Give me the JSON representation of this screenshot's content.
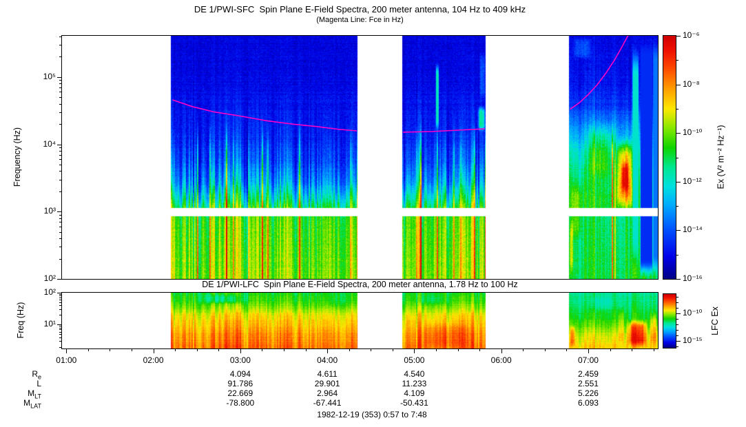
{
  "header": {
    "title": "DE 1/PWI-SFC  Spin Plane E-Field Spectra, 200 meter antenna, 104 Hz to 409 kHz",
    "subtitle": "(Magenta Line: Fce in Hz)"
  },
  "lfc_header": {
    "title": "DE 1/PWI-LFC  Spin Plane E-Field Spectra, 200 meter antenna, 1.78 Hz to 100 Hz"
  },
  "footer": {
    "date_range": "1982-12-19 (353) 0:57 to 7:48"
  },
  "ephemeris": {
    "column_hours": [
      3,
      4,
      5,
      7
    ],
    "rows": [
      {
        "label": "R",
        "sub": "e",
        "values": [
          "4.094",
          "4.611",
          "4.540",
          "2.459"
        ]
      },
      {
        "label": "L",
        "sub": "",
        "values": [
          "91.786",
          "29.901",
          "11.233",
          "2.551"
        ]
      },
      {
        "label": "M",
        "sub": "LT",
        "values": [
          "22.669",
          "2.964",
          "4.109",
          "5.226"
        ]
      },
      {
        "label": "M",
        "sub": "LAT",
        "values": [
          "-78.800",
          "-67.441",
          "-50.431",
          "6.093"
        ]
      }
    ]
  },
  "chart_data": {
    "type": "heatmap",
    "subtype": "spectrogram",
    "time_axis": {
      "start_hour": 0.95,
      "end_hour": 7.8,
      "minor_step_hours": 0.25,
      "tick_hours": [
        1,
        2,
        3,
        4,
        5,
        6,
        7
      ],
      "tick_labels": [
        "01:00",
        "02:00",
        "03:00",
        "04:00",
        "05:00",
        "06:00",
        "07:00"
      ]
    },
    "colormap": [
      [
        0.0,
        "#000086"
      ],
      [
        0.09,
        "#0000e8"
      ],
      [
        0.2,
        "#0050ff"
      ],
      [
        0.3,
        "#00a8ff"
      ],
      [
        0.38,
        "#00e0e0"
      ],
      [
        0.46,
        "#00e890"
      ],
      [
        0.54,
        "#10d400"
      ],
      [
        0.62,
        "#86e800"
      ],
      [
        0.7,
        "#ffe800"
      ],
      [
        0.78,
        "#ffa000"
      ],
      [
        0.86,
        "#ff5000"
      ],
      [
        0.94,
        "#f01000"
      ],
      [
        1.0,
        "#d00000"
      ]
    ],
    "fce_line": {
      "label": "Fce in Hz",
      "color": "#ff00c8",
      "segments_hour_logfreq": [
        [
          [
            2.22,
            4.66
          ],
          [
            2.45,
            4.56
          ],
          [
            2.7,
            4.48
          ],
          [
            3.0,
            4.42
          ],
          [
            3.3,
            4.35
          ],
          [
            3.6,
            4.3
          ],
          [
            3.9,
            4.26
          ],
          [
            4.15,
            4.22
          ],
          [
            4.34,
            4.2
          ]
        ],
        [
          [
            4.87,
            4.18
          ],
          [
            5.2,
            4.19
          ],
          [
            5.5,
            4.21
          ],
          [
            5.81,
            4.23
          ]
        ],
        [
          [
            6.79,
            4.52
          ],
          [
            6.9,
            4.62
          ],
          [
            7.0,
            4.74
          ],
          [
            7.1,
            4.88
          ],
          [
            7.2,
            5.05
          ],
          [
            7.3,
            5.25
          ],
          [
            7.38,
            5.43
          ],
          [
            7.45,
            5.6
          ],
          [
            7.49,
            5.66
          ]
        ]
      ]
    },
    "panels": {
      "sfc": {
        "ylabel": "Frequency (Hz)",
        "ylog_range": [
          2.0,
          5.612
        ],
        "yticks": [
          {
            "label": "10⁵",
            "log": 5
          },
          {
            "label": "10⁴",
            "log": 4
          },
          {
            "label": "10³",
            "log": 3
          },
          {
            "label": "10²",
            "log": 2
          }
        ],
        "colorbar": {
          "label": "Ex (V² m⁻² Hz⁻¹)",
          "log_range": [
            -6,
            -16
          ],
          "major_ticks": [
            {
              "label": "10⁻⁶",
              "log": -6
            },
            {
              "label": "10⁻⁸",
              "log": -8
            },
            {
              "label": "10⁻¹⁰",
              "log": -10
            },
            {
              "label": "10⁻¹²",
              "log": -12
            },
            {
              "label": "10⁻¹⁴",
              "log": -14
            },
            {
              "label": "10⁻¹⁶",
              "log": -16
            }
          ],
          "minor_logs": [
            -7,
            -9,
            -11,
            -13,
            -15
          ]
        },
        "gap_yfrac": [
          0.708,
          0.74
        ],
        "noise": 0.08,
        "spikes": true,
        "segments": [
          {
            "t": [
              2.2,
              4.35
            ],
            "profile": [
              [
                0,
                0.085
              ],
              [
                0.17,
                0.09
              ],
              [
                0.3,
                0.115
              ],
              [
                0.42,
                0.135
              ],
              [
                0.52,
                0.18
              ],
              [
                0.6,
                0.26
              ],
              [
                0.67,
                0.4
              ],
              [
                0.705,
                0.5
              ],
              [
                0.74,
                0.55
              ],
              [
                0.88,
                0.58
              ],
              [
                1,
                0.6
              ]
            ],
            "streak_env": [
              [
                0,
                0.015
              ],
              [
                0.22,
                0.03
              ],
              [
                0.38,
                0.09
              ],
              [
                0.5,
                0.18
              ],
              [
                0.62,
                0.3
              ],
              [
                0.7,
                0.3
              ],
              [
                0.74,
                0.2
              ],
              [
                1,
                0.17
              ]
            ],
            "features": []
          },
          {
            "t": [
              4.86,
              5.82
            ],
            "profile": [
              [
                0,
                0.085
              ],
              [
                0.17,
                0.09
              ],
              [
                0.3,
                0.115
              ],
              [
                0.42,
                0.135
              ],
              [
                0.52,
                0.18
              ],
              [
                0.6,
                0.26
              ],
              [
                0.67,
                0.4
              ],
              [
                0.705,
                0.5
              ],
              [
                0.74,
                0.55
              ],
              [
                0.88,
                0.58
              ],
              [
                1,
                0.6
              ]
            ],
            "streak_env": [
              [
                0,
                0.015
              ],
              [
                0.22,
                0.03
              ],
              [
                0.38,
                0.09
              ],
              [
                0.5,
                0.18
              ],
              [
                0.62,
                0.3
              ],
              [
                0.7,
                0.3
              ],
              [
                0.74,
                0.2
              ],
              [
                1,
                0.17
              ]
            ],
            "features": [
              {
                "t": [
                  5.24,
                  5.28
                ],
                "y": [
                  0.1,
                  0.4
                ],
                "set": 0.42,
                "soft": 0.2
              },
              {
                "t": [
                  5.72,
                  5.82
                ],
                "y": [
                  0.28,
                  0.4
                ],
                "add": 0.3,
                "soft": 0.3
              },
              {
                "t": [
                  5.74,
                  5.82
                ],
                "y": [
                  0.05,
                  0.28
                ],
                "add": 0.1,
                "soft": 0.3
              }
            ]
          },
          {
            "t": [
              6.78,
              7.8
            ],
            "profile": [
              [
                0,
                0.09
              ],
              [
                0.18,
                0.11
              ],
              [
                0.28,
                0.15
              ],
              [
                0.38,
                0.28
              ],
              [
                0.48,
                0.4
              ],
              [
                0.6,
                0.48
              ],
              [
                0.705,
                0.52
              ],
              [
                0.74,
                0.47
              ],
              [
                1,
                0.5
              ]
            ],
            "streak_env": [
              [
                0,
                0.03
              ],
              [
                0.3,
                0.08
              ],
              [
                0.5,
                0.13
              ],
              [
                1,
                0.11
              ]
            ],
            "features": [
              {
                "t": [
                  6.8,
                  7.05
                ],
                "y": [
                  0.0,
                  0.1
                ],
                "add": 0.1,
                "soft": 0.3
              },
              {
                "t": [
                  6.95,
                  7.32
                ],
                "y": [
                  0.33,
                  0.62
                ],
                "add": 0.12,
                "soft": 0.35
              },
              {
                "t": [
                  7.3,
                  7.53
                ],
                "y": [
                  0.4,
                  0.74
                ],
                "add": 0.3,
                "soft": 0.3
              },
              {
                "t": [
                  7.36,
                  7.48
                ],
                "y": [
                  0.5,
                  0.66
                ],
                "add": 0.2,
                "soft": 0.35
              },
              {
                "t": [
                  6.78,
                  6.94
                ],
                "y": [
                  0.58,
                  0.86
                ],
                "add": 0.1,
                "soft": 0.3
              },
              {
                "t": [
                  6.78,
                  6.83
                ],
                "y": [
                  0.74,
                  1.0
                ],
                "add": 0.15,
                "soft": 0.3
              },
              {
                "t": [
                  7.5,
                  7.58
                ],
                "y": [
                  0.03,
                  0.97
                ],
                "set": 0.4,
                "soft": 0.15
              },
              {
                "t": [
                  7.59,
                  7.74
                ],
                "y": [
                  0.0,
                  1.0
                ],
                "set": 0.15,
                "soft": 0.08
              },
              {
                "t": [
                  7.74,
                  7.8
                ],
                "y": [
                  0.0,
                  1.0
                ],
                "set": 0.24,
                "soft": 0.1
              }
            ]
          }
        ]
      },
      "lfc": {
        "ylabel": "Freq (Hz)",
        "ylog_range": [
          0.25,
          2.0
        ],
        "yticks": [
          {
            "label": "10²",
            "log": 2
          },
          {
            "label": "10¹",
            "log": 1
          }
        ],
        "colorbar": {
          "label": "LFC Ex",
          "log_range": [
            -6.5,
            -16.25
          ],
          "major_ticks": [
            {
              "label": "10⁻¹⁰",
              "log": -10
            },
            {
              "label": "10⁻¹⁵",
              "log": -15
            }
          ],
          "minor_logs": [
            -7,
            -8,
            -9,
            -11,
            -12,
            -13,
            -14,
            -16
          ]
        },
        "gap_yfrac": null,
        "noise": 0.05,
        "spikes": false,
        "segments": [
          {
            "t": [
              2.2,
              4.35
            ],
            "profile": [
              [
                0,
                0.52
              ],
              [
                0.15,
                0.56
              ],
              [
                0.28,
                0.62
              ],
              [
                0.42,
                0.7
              ],
              [
                0.58,
                0.74
              ],
              [
                0.75,
                0.78
              ],
              [
                0.9,
                0.81
              ],
              [
                1,
                0.83
              ]
            ],
            "streak_env": [
              [
                0,
                0.1
              ],
              [
                1,
                0.14
              ]
            ],
            "features": [
              {
                "t": [
                  2.45,
                  3.15
                ],
                "y": [
                  0.0,
                  0.22
                ],
                "add": -0.1,
                "soft": 0.4
              },
              {
                "t": [
                  3.9,
                  4.35
                ],
                "y": [
                  0.0,
                  0.3
                ],
                "add": -0.03,
                "soft": 0.4
              }
            ]
          },
          {
            "t": [
              4.86,
              5.82
            ],
            "profile": [
              [
                0,
                0.52
              ],
              [
                0.15,
                0.56
              ],
              [
                0.28,
                0.62
              ],
              [
                0.42,
                0.7
              ],
              [
                0.58,
                0.74
              ],
              [
                0.75,
                0.78
              ],
              [
                0.9,
                0.81
              ],
              [
                1,
                0.83
              ]
            ],
            "streak_env": [
              [
                0,
                0.1
              ],
              [
                1,
                0.14
              ]
            ],
            "features": [
              {
                "t": [
                  5.0,
                  5.7
                ],
                "y": [
                  0.5,
                  1.0
                ],
                "add": 0.05,
                "soft": 0.3
              },
              {
                "t": [
                  4.95,
                  5.45
                ],
                "y": [
                  0.0,
                  0.25
                ],
                "add": -0.05,
                "soft": 0.4
              }
            ]
          },
          {
            "t": [
              6.78,
              7.8
            ],
            "profile": [
              [
                0,
                0.45
              ],
              [
                0.22,
                0.48
              ],
              [
                0.42,
                0.52
              ],
              [
                0.62,
                0.6
              ],
              [
                0.8,
                0.67
              ],
              [
                1,
                0.73
              ]
            ],
            "streak_env": [
              [
                0,
                0.07
              ],
              [
                1,
                0.1
              ]
            ],
            "features": [
              {
                "t": [
                  6.95,
                  7.35
                ],
                "y": [
                  0.0,
                  0.35
                ],
                "add": -0.05,
                "soft": 0.4
              },
              {
                "t": [
                  7.42,
                  7.7
                ],
                "y": [
                  0.45,
                  1.0
                ],
                "add": 0.24,
                "soft": 0.3
              },
              {
                "t": [
                  7.7,
                  7.8
                ],
                "y": [
                  0.3,
                  1.0
                ],
                "add": 0.12,
                "soft": 0.3
              },
              {
                "t": [
                  6.78,
                  6.85
                ],
                "y": [
                  0.55,
                  1.0
                ],
                "add": 0.14,
                "soft": 0.3
              },
              {
                "t": [
                  7.33,
                  7.42
                ],
                "y": [
                  0.2,
                  1.0
                ],
                "add": 0.1,
                "soft": 0.3
              }
            ]
          }
        ]
      }
    }
  }
}
